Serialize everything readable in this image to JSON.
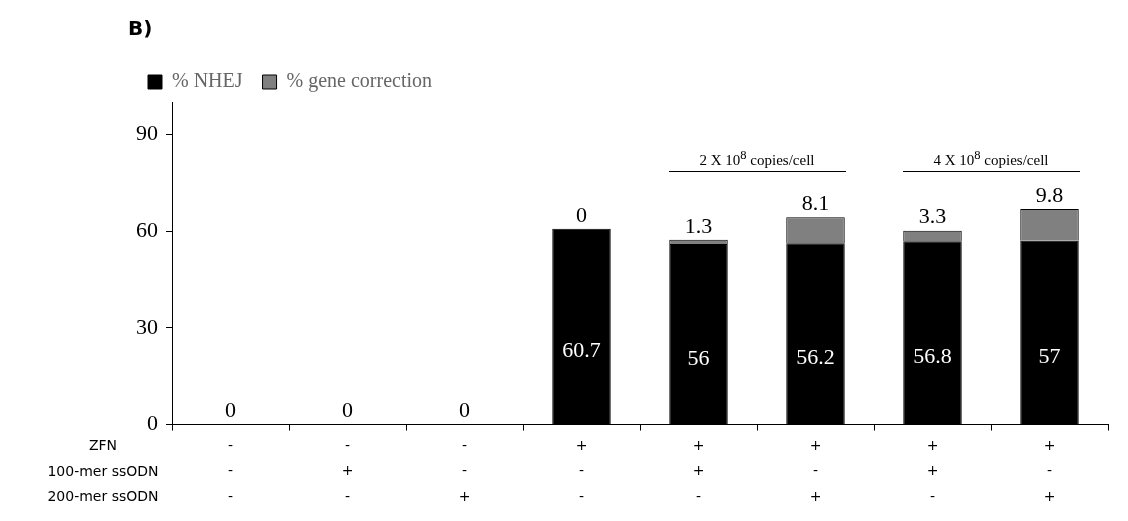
{
  "chart_data": {
    "type": "bar",
    "title": "B)",
    "stacked": true,
    "categories": [
      "-\n-\n-",
      "-\n+\n-",
      "-\n-\n+",
      "+\n-\n-",
      "+\n+\n-",
      "+\n-\n+",
      "+\n+\n-",
      "+\n-\n+"
    ],
    "series": [
      {
        "name": "% NHEJ",
        "color": "#000000",
        "values": [
          0,
          0,
          0,
          60.7,
          56,
          56.2,
          56.8,
          57
        ],
        "value_labels": [
          "0",
          "0",
          "0",
          "60.7",
          "56",
          "56.2",
          "56.8",
          "57"
        ]
      },
      {
        "name": "% gene correction",
        "color": "#808080",
        "values": [
          0,
          0,
          0,
          0,
          1.3,
          8.1,
          3.3,
          9.8
        ],
        "value_labels": [
          null,
          null,
          null,
          "0",
          "1.3",
          "8.1",
          "3.3",
          "9.8"
        ]
      }
    ],
    "ylim": [
      0,
      100
    ],
    "yticks": [
      0,
      30,
      60,
      90
    ],
    "grid": false,
    "legend": "top left",
    "annotations": [
      "ZFN",
      "100-mer ssODN",
      "200-mer ssODN",
      "2 X 10$^{8}$ copies/cell",
      "4 X 10$^{8}$ copies/cell"
    ]
  }
}
